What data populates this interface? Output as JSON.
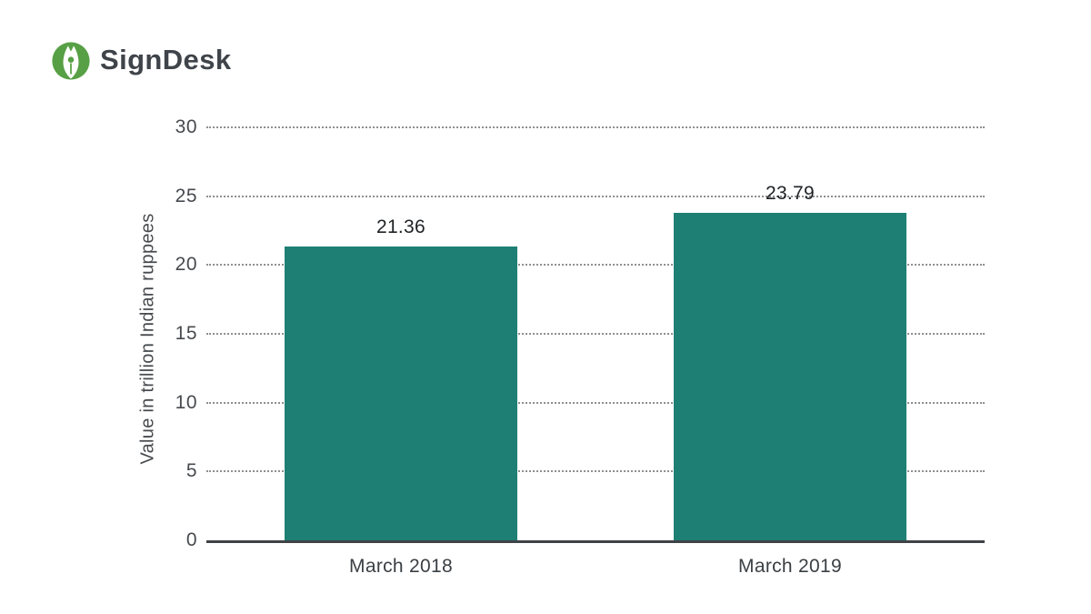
{
  "logo": {
    "text": "SignDesk",
    "icon": "signdesk-pen-nib-icon",
    "icon_color": "#57A045",
    "text_color": "#3F444A"
  },
  "chart_data": {
    "type": "bar",
    "title": "",
    "categories": [
      "March 2018",
      "March 2019"
    ],
    "values": [
      21.36,
      23.79
    ],
    "value_labels": [
      "21.36",
      "23.79"
    ],
    "xlabel": "",
    "ylabel": "Value in trillion Indian ruppees",
    "ylim": [
      0,
      30
    ],
    "yticks": [
      0,
      5,
      10,
      15,
      20,
      25,
      30
    ],
    "grid": "horizontal-dotted",
    "legend": "none",
    "bar_color": "#1E8074",
    "grid_color": "#8F8F8F",
    "axis_color": "#3F4347",
    "tick_label_color": "#474A4E",
    "value_label_color": "#1F2225",
    "category_label_color": "#3B4045",
    "ylabel_color": "#474A4E"
  }
}
